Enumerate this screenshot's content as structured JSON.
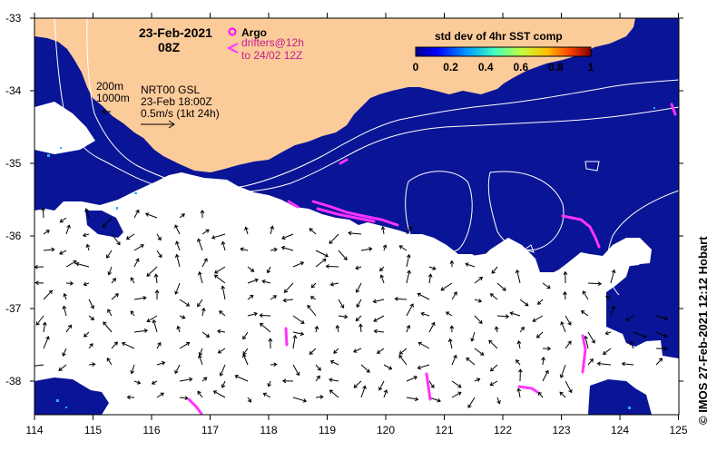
{
  "header": {
    "date_line": "23-Feb-2021",
    "time_line": "08Z"
  },
  "legend": {
    "argo_label": "Argo",
    "drifters_line1": "drifters@12h",
    "drifters_line2": "to 24/02 12Z",
    "argo_color": "#ff00ff",
    "drifter_color": "#ff33ff"
  },
  "depth_labels": {
    "d200": "200m",
    "d1000": "1000m"
  },
  "current_info": {
    "model": "NRT00 GSL",
    "valid": "23-Feb 18:00Z",
    "scale": "0.5m/s (1kt 24h)"
  },
  "colorbar": {
    "title": "std dev of 4hr SST comp",
    "ticks": [
      "0",
      "0.2",
      "0.4",
      "0.6",
      "0.8",
      "1"
    ],
    "colors": [
      "#00008f",
      "#0000ff",
      "#00a0ff",
      "#40ffc0",
      "#c0ff40",
      "#ffc000",
      "#ff4000",
      "#800000"
    ]
  },
  "axes": {
    "x_ticks": [
      "114",
      "115",
      "116",
      "117",
      "118",
      "119",
      "120",
      "121",
      "122",
      "123",
      "124",
      "125"
    ],
    "y_ticks": [
      "-33",
      "-34",
      "-35",
      "-36",
      "-37",
      "-38"
    ]
  },
  "credit": "©  IMOS 27-Feb-2021 12:12 Hobart",
  "colors": {
    "land": "#fccb9a",
    "ocean": "#0a1496",
    "contour": "#ffffff"
  }
}
